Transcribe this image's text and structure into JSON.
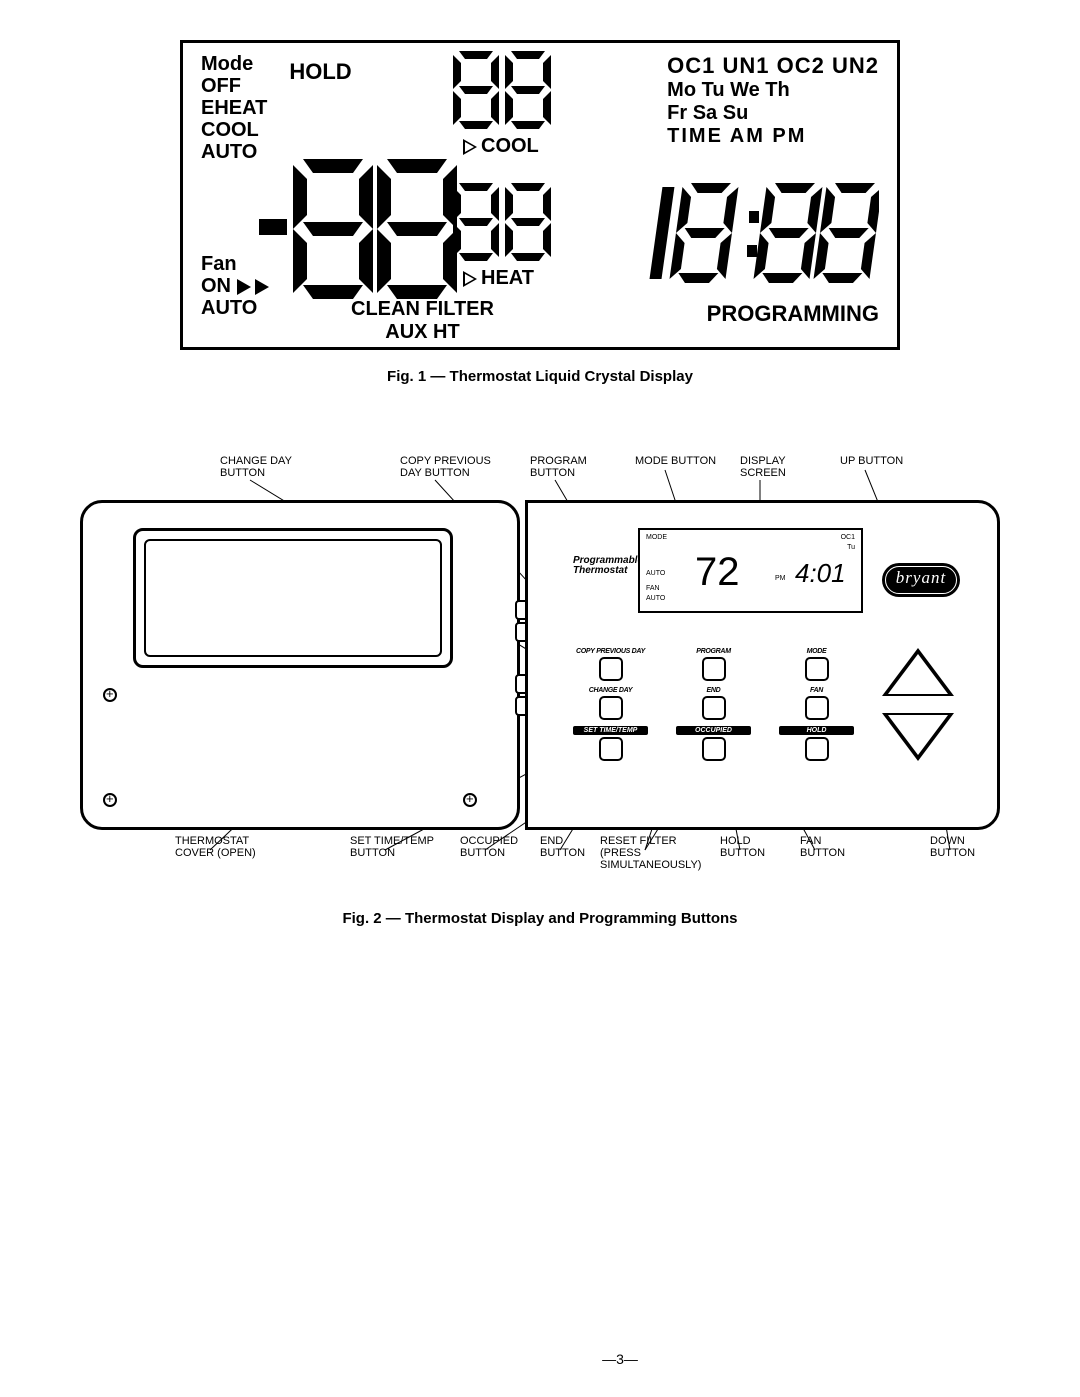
{
  "fig1": {
    "mode_head": "Mode",
    "modes": [
      "OFF",
      "EHEAT",
      "COOL",
      "AUTO"
    ],
    "hold": "HOLD",
    "oc_row": "OC1 UN1 OC2 UN2",
    "days1": "Mo Tu We Th",
    "days2": "Fr Sa Su",
    "time_hdr": "TIME   AM  PM",
    "cool": "COOL",
    "heat": "HEAT",
    "fan_head": "Fan",
    "fan_on": "ON",
    "fan_auto": "AUTO",
    "clean": "CLEAN FILTER",
    "aux": "AUX HT",
    "programming": "PROGRAMMING",
    "small88_top": "88",
    "small88_bot": "88",
    "big_minus88": "-88",
    "clock": "18:88",
    "caption": "Fig. 1 — Thermostat Liquid Crystal Display"
  },
  "fig2": {
    "top_labels": {
      "change_day": "CHANGE DAY\nBUTTON",
      "copy_prev": "COPY PREVIOUS\nDAY BUTTON",
      "program": "PROGRAM\nBUTTON",
      "mode": "MODE BUTTON",
      "display": "DISPLAY\nSCREEN",
      "up": "UP BUTTON"
    },
    "bot_labels": {
      "cover": "THERMOSTAT\nCOVER (OPEN)",
      "settime": "SET TIME/TEMP\nBUTTON",
      "occupied": "OCCUPIED\nBUTTON",
      "end": "END\nBUTTON",
      "reset": "RESET FILTER\n(PRESS\nSIMULTANEOUSLY)",
      "hold": "HOLD\nBUTTON",
      "fan": "FAN\nBUTTON",
      "down": "DOWN\nBUTTON"
    },
    "device": {
      "prog_label1": "Programmable",
      "prog_label2": "Thermostat",
      "brand": "bryant",
      "btn_row1": [
        "COPY PREVIOUS DAY",
        "PROGRAM",
        "MODE"
      ],
      "btn_row2": [
        "CHANGE DAY",
        "END",
        "FAN"
      ],
      "btn_row3": [
        "SET TIME/TEMP",
        "OCCUPIED",
        "HOLD"
      ],
      "screen": {
        "mode": "MODE",
        "auto": "AUTO",
        "fan": "FAN",
        "auto2": "AUTO",
        "oc1": "OC1",
        "tu": "Tu",
        "pm": "PM",
        "temp": "72",
        "time": "4:01"
      }
    },
    "caption": "Fig. 2 — Thermostat Display and Programming Buttons"
  },
  "page_number": "—3—"
}
